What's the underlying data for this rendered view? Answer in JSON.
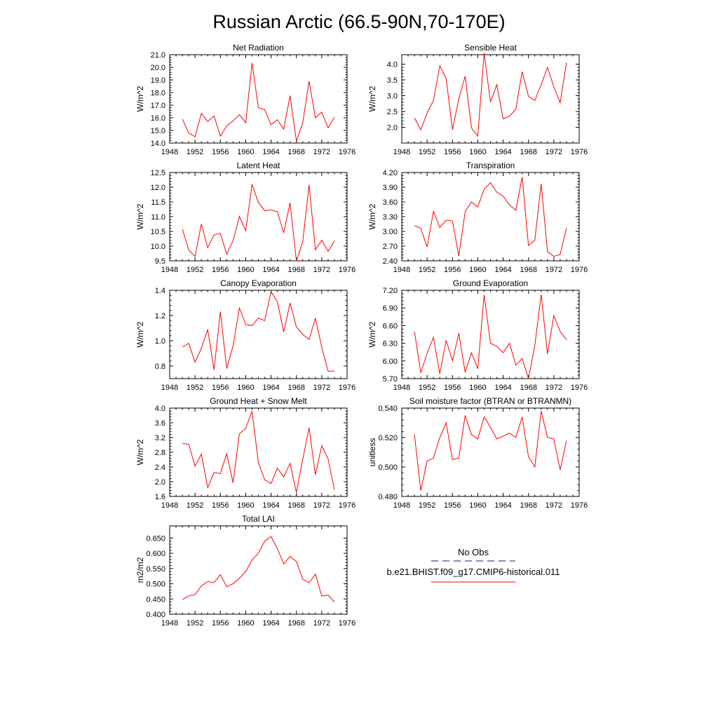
{
  "title": "Russian Arctic (66.5-90N,70-170E)",
  "colors": {
    "model": "#ff0000",
    "obs": "#1a1a80",
    "axis": "#000000"
  },
  "legend": {
    "obs_label": "No Obs",
    "model_label": "b.e21.BHIST.f09_g17.CMIP6-historical.011"
  },
  "chart_data": [
    {
      "type": "line",
      "title": "Net Radiation",
      "ylabel": "W/m^2",
      "xlim": [
        1948,
        1976
      ],
      "ylim": [
        14.0,
        21.0
      ],
      "x_ticks": [
        1948,
        1952,
        1956,
        1960,
        1964,
        1968,
        1972,
        1976
      ],
      "x_tick_labels": [
        "1948",
        "1952",
        "1956",
        "1960",
        "1964",
        "1968",
        "1972",
        "1976"
      ],
      "y_ticks": [
        14.0,
        15.0,
        16.0,
        17.0,
        18.0,
        19.0,
        20.0,
        21.0
      ],
      "y_tick_labels": [
        "14.0",
        "15.0",
        "16.0",
        "17.0",
        "18.0",
        "19.0",
        "20.0",
        "21.0"
      ],
      "x": [
        1950,
        1951,
        1952,
        1953,
        1954,
        1955,
        1956,
        1957,
        1958,
        1959,
        1960,
        1961,
        1962,
        1963,
        1964,
        1965,
        1966,
        1967,
        1968,
        1969,
        1970,
        1971,
        1972,
        1973,
        1974
      ],
      "series": [
        {
          "values": [
            15.9,
            14.8,
            14.5,
            16.35,
            15.7,
            16.15,
            14.55,
            15.35,
            15.75,
            16.25,
            15.6,
            20.35,
            16.8,
            16.65,
            15.45,
            15.85,
            15.1,
            17.75,
            14.15,
            15.6,
            18.9,
            16.0,
            16.45,
            15.2,
            16.05
          ]
        }
      ]
    },
    {
      "type": "line",
      "title": "Sensible Heat",
      "ylabel": "W/m^2",
      "xlim": [
        1948,
        1976
      ],
      "ylim": [
        1.5,
        4.3
      ],
      "x_ticks": [
        1948,
        1952,
        1956,
        1960,
        1964,
        1968,
        1972,
        1976
      ],
      "x_tick_labels": [
        "1948",
        "1952",
        "1956",
        "1960",
        "1964",
        "1968",
        "1972",
        "1976"
      ],
      "y_ticks": [
        2.0,
        2.5,
        3.0,
        3.5,
        4.0
      ],
      "y_tick_labels": [
        "2.0",
        "2.5",
        "3.0",
        "3.5",
        "4.0"
      ],
      "x": [
        1950,
        1951,
        1952,
        1953,
        1954,
        1955,
        1956,
        1957,
        1958,
        1959,
        1960,
        1961,
        1962,
        1963,
        1964,
        1965,
        1966,
        1967,
        1968,
        1969,
        1970,
        1971,
        1972,
        1973,
        1974
      ],
      "series": [
        {
          "values": [
            2.3,
            1.92,
            2.45,
            2.85,
            3.95,
            3.55,
            1.92,
            2.9,
            3.62,
            1.98,
            1.72,
            4.35,
            2.8,
            3.35,
            2.27,
            2.35,
            2.57,
            3.76,
            2.98,
            2.85,
            3.35,
            3.9,
            3.28,
            2.78,
            4.05
          ]
        }
      ]
    },
    {
      "type": "line",
      "title": "Latent Heat",
      "ylabel": "W/m^2",
      "xlim": [
        1948,
        1976
      ],
      "ylim": [
        9.5,
        12.5
      ],
      "x_ticks": [
        1948,
        1952,
        1956,
        1960,
        1964,
        1968,
        1972,
        1976
      ],
      "x_tick_labels": [
        "1948",
        "1952",
        "1956",
        "1960",
        "1964",
        "1968",
        "1972",
        "1976"
      ],
      "y_ticks": [
        9.5,
        10.0,
        10.5,
        11.0,
        11.5,
        12.0,
        12.5
      ],
      "y_tick_labels": [
        "9.5",
        "10.0",
        "10.5",
        "11.0",
        "11.5",
        "12.0",
        "12.5"
      ],
      "x": [
        1950,
        1951,
        1952,
        1953,
        1954,
        1955,
        1956,
        1957,
        1958,
        1959,
        1960,
        1961,
        1962,
        1963,
        1964,
        1965,
        1966,
        1967,
        1968,
        1969,
        1970,
        1971,
        1972,
        1973,
        1974
      ],
      "series": [
        {
          "values": [
            10.58,
            9.87,
            9.65,
            10.75,
            9.95,
            10.38,
            10.43,
            9.73,
            10.18,
            11.01,
            10.52,
            12.1,
            11.48,
            11.2,
            11.23,
            11.17,
            10.45,
            11.47,
            9.5,
            10.15,
            12.08,
            9.88,
            10.2,
            9.82,
            10.18
          ]
        }
      ]
    },
    {
      "type": "line",
      "title": "Transpiration",
      "ylabel": "W/m^2",
      "xlim": [
        1948,
        1976
      ],
      "ylim": [
        2.4,
        4.2
      ],
      "x_ticks": [
        1948,
        1952,
        1956,
        1960,
        1964,
        1968,
        1972,
        1976
      ],
      "x_tick_labels": [
        "1948",
        "1952",
        "1956",
        "1960",
        "1964",
        "1968",
        "1972",
        "1976"
      ],
      "y_ticks": [
        2.4,
        2.7,
        3.0,
        3.3,
        3.6,
        3.9,
        4.2
      ],
      "y_tick_labels": [
        "2.40",
        "2.70",
        "3.00",
        "3.30",
        "3.60",
        "3.90",
        "4.20"
      ],
      "x": [
        1950,
        1951,
        1952,
        1953,
        1954,
        1955,
        1956,
        1957,
        1958,
        1959,
        1960,
        1961,
        1962,
        1963,
        1964,
        1965,
        1966,
        1967,
        1968,
        1969,
        1970,
        1971,
        1972,
        1973,
        1974
      ],
      "series": [
        {
          "values": [
            3.12,
            3.06,
            2.68,
            3.41,
            3.08,
            3.23,
            3.21,
            2.5,
            3.4,
            3.6,
            3.5,
            3.86,
            3.99,
            3.8,
            3.72,
            3.54,
            3.43,
            4.11,
            2.71,
            2.82,
            3.97,
            2.59,
            2.49,
            2.53,
            3.07
          ]
        }
      ]
    },
    {
      "type": "line",
      "title": "Canopy Evaporation",
      "ylabel": "W/m^2",
      "xlim": [
        1948,
        1976
      ],
      "ylim": [
        0.7,
        1.4
      ],
      "x_ticks": [
        1948,
        1952,
        1956,
        1960,
        1964,
        1968,
        1972,
        1976
      ],
      "x_tick_labels": [
        "1948",
        "1952",
        "1956",
        "1960",
        "1964",
        "1968",
        "1972",
        "1976"
      ],
      "y_ticks": [
        0.8,
        1.0,
        1.2,
        1.4
      ],
      "y_tick_labels": [
        "0.8",
        "1.0",
        "1.2",
        "1.4"
      ],
      "x": [
        1950,
        1951,
        1952,
        1953,
        1954,
        1955,
        1956,
        1957,
        1958,
        1959,
        1960,
        1961,
        1962,
        1963,
        1964,
        1965,
        1966,
        1967,
        1968,
        1969,
        1970,
        1971,
        1972,
        1973,
        1974
      ],
      "series": [
        {
          "values": [
            0.95,
            0.98,
            0.83,
            0.94,
            1.09,
            0.77,
            1.23,
            0.78,
            0.96,
            1.26,
            1.13,
            1.12,
            1.18,
            1.16,
            1.39,
            1.31,
            1.07,
            1.3,
            1.11,
            1.05,
            1.01,
            1.18,
            0.95,
            0.76,
            0.76
          ]
        }
      ]
    },
    {
      "type": "line",
      "title": "Ground Evaporation",
      "ylabel": "W/m^2",
      "xlim": [
        1948,
        1976
      ],
      "ylim": [
        5.7,
        7.2
      ],
      "x_ticks": [
        1948,
        1952,
        1956,
        1960,
        1964,
        1968,
        1972,
        1976
      ],
      "x_tick_labels": [
        "1948",
        "1952",
        "1956",
        "1960",
        "1964",
        "1968",
        "1972",
        "1976"
      ],
      "y_ticks": [
        5.7,
        6.0,
        6.3,
        6.6,
        6.9,
        7.2
      ],
      "y_tick_labels": [
        "5.70",
        "6.00",
        "6.30",
        "6.60",
        "6.90",
        "7.20"
      ],
      "x": [
        1950,
        1951,
        1952,
        1953,
        1954,
        1955,
        1956,
        1957,
        1958,
        1959,
        1960,
        1961,
        1962,
        1963,
        1964,
        1965,
        1966,
        1967,
        1968,
        1969,
        1970,
        1971,
        1972,
        1973,
        1974
      ],
      "series": [
        {
          "values": [
            6.5,
            5.8,
            6.13,
            6.4,
            5.78,
            6.35,
            6.0,
            6.47,
            5.81,
            6.14,
            5.87,
            7.12,
            6.3,
            6.25,
            6.14,
            6.3,
            5.93,
            6.04,
            5.7,
            6.26,
            7.13,
            6.12,
            6.77,
            6.5,
            6.36
          ]
        }
      ]
    },
    {
      "type": "line",
      "title": "Ground Heat + Snow Melt",
      "ylabel": "W/m^2",
      "xlim": [
        1948,
        1976
      ],
      "ylim": [
        1.6,
        4.0
      ],
      "x_ticks": [
        1948,
        1952,
        1956,
        1960,
        1964,
        1968,
        1972,
        1976
      ],
      "x_tick_labels": [
        "1948",
        "1952",
        "1956",
        "1960",
        "1964",
        "1968",
        "1972",
        "1976"
      ],
      "y_ticks": [
        1.6,
        2.0,
        2.4,
        2.8,
        3.2,
        3.6,
        4.0
      ],
      "y_tick_labels": [
        "1.6",
        "2.0",
        "2.4",
        "2.8",
        "3.2",
        "3.6",
        "4.0"
      ],
      "x": [
        1950,
        1951,
        1952,
        1953,
        1954,
        1955,
        1956,
        1957,
        1958,
        1959,
        1960,
        1961,
        1962,
        1963,
        1964,
        1965,
        1966,
        1967,
        1968,
        1969,
        1970,
        1971,
        1972,
        1973,
        1974
      ],
      "series": [
        {
          "values": [
            3.04,
            3.02,
            2.42,
            2.75,
            1.84,
            2.25,
            2.22,
            2.76,
            1.97,
            3.3,
            3.45,
            3.92,
            2.52,
            2.05,
            1.95,
            2.37,
            2.13,
            2.5,
            1.71,
            2.6,
            3.47,
            2.19,
            2.98,
            2.62,
            1.78
          ]
        }
      ]
    },
    {
      "type": "line",
      "title": "Soil moisture factor (BTRAN or BTRANMN)",
      "ylabel": "unitless",
      "xlim": [
        1948,
        1976
      ],
      "ylim": [
        0.48,
        0.54
      ],
      "x_ticks": [
        1948,
        1952,
        1956,
        1960,
        1964,
        1968,
        1972,
        1976
      ],
      "x_tick_labels": [
        "1948",
        "1952",
        "1956",
        "1960",
        "1964",
        "1968",
        "1972",
        "1976"
      ],
      "y_ticks": [
        0.48,
        0.5,
        0.52,
        0.54
      ],
      "y_tick_labels": [
        "0.480",
        "0.500",
        "0.520",
        "0.540"
      ],
      "x": [
        1950,
        1951,
        1952,
        1953,
        1954,
        1955,
        1956,
        1957,
        1958,
        1959,
        1960,
        1961,
        1962,
        1963,
        1964,
        1965,
        1966,
        1967,
        1968,
        1969,
        1970,
        1971,
        1972,
        1973,
        1974
      ],
      "series": [
        {
          "values": [
            0.522,
            0.484,
            0.504,
            0.506,
            0.52,
            0.53,
            0.505,
            0.506,
            0.535,
            0.522,
            0.519,
            0.534,
            0.527,
            0.519,
            0.521,
            0.523,
            0.52,
            0.534,
            0.507,
            0.5,
            0.538,
            0.52,
            0.519,
            0.498,
            0.518
          ]
        }
      ]
    },
    {
      "type": "line",
      "title": "Total LAI",
      "ylabel": "m2/m2",
      "xlim": [
        1948,
        1976
      ],
      "ylim": [
        0.4,
        0.69
      ],
      "x_ticks": [
        1948,
        1952,
        1956,
        1960,
        1964,
        1968,
        1972,
        1976
      ],
      "x_tick_labels": [
        "1948",
        "1952",
        "1956",
        "1960",
        "1964",
        "1968",
        "1972",
        "1976"
      ],
      "y_ticks": [
        0.4,
        0.45,
        0.5,
        0.55,
        0.6,
        0.65
      ],
      "y_tick_labels": [
        "0.400",
        "0.450",
        "0.500",
        "0.550",
        "0.600",
        "0.650"
      ],
      "x": [
        1950,
        1951,
        1952,
        1953,
        1954,
        1955,
        1956,
        1957,
        1958,
        1959,
        1960,
        1961,
        1962,
        1963,
        1964,
        1965,
        1966,
        1967,
        1968,
        1969,
        1970,
        1971,
        1972,
        1973,
        1974
      ],
      "series": [
        {
          "values": [
            0.448,
            0.46,
            0.464,
            0.493,
            0.507,
            0.504,
            0.53,
            0.49,
            0.5,
            0.518,
            0.54,
            0.578,
            0.6,
            0.64,
            0.655,
            0.615,
            0.565,
            0.59,
            0.573,
            0.515,
            0.503,
            0.532,
            0.46,
            0.463,
            0.44
          ]
        }
      ]
    }
  ]
}
